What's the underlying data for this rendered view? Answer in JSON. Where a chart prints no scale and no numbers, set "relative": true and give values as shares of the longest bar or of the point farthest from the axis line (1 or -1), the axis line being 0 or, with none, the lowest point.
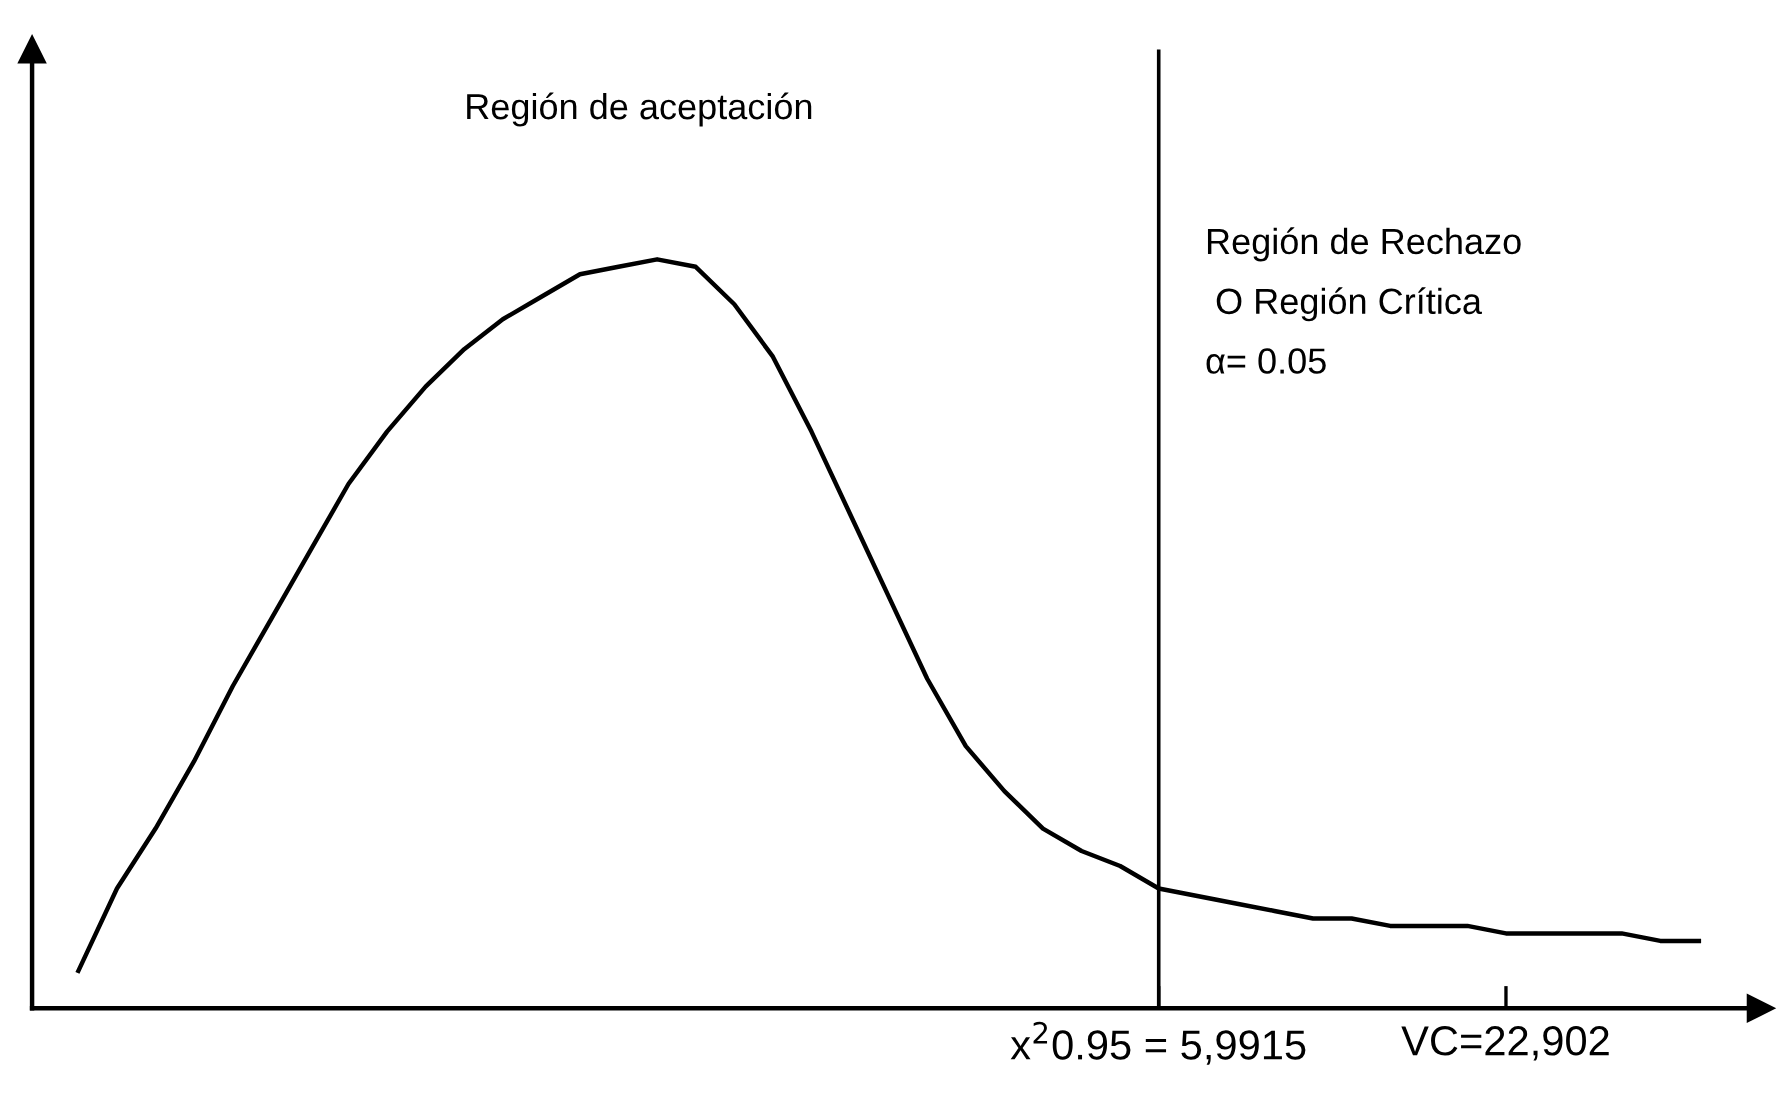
{
  "chart_data": {
    "type": "line",
    "relative": true,
    "color": "#000000",
    "categories": [
      null,
      null,
      null,
      null,
      null,
      null,
      null,
      null,
      null,
      null,
      null,
      null,
      null,
      null,
      null,
      null,
      null,
      null,
      null,
      null,
      null,
      null,
      null,
      null,
      null,
      null,
      null,
      null,
      "x$^{2}$0.95 = 5,9915",
      null,
      null,
      null,
      null,
      null,
      null,
      null,
      null,
      "VC=22,902",
      null,
      null,
      null,
      null,
      null
    ],
    "values": [
      0.05,
      0.16,
      0.24,
      0.33,
      0.43,
      0.52,
      0.61,
      0.7,
      0.77,
      0.83,
      0.88,
      0.92,
      0.95,
      0.98,
      0.99,
      1.0,
      0.99,
      0.94,
      0.87,
      0.77,
      0.66,
      0.55,
      0.44,
      0.35,
      0.29,
      0.24,
      0.21,
      0.19,
      0.16,
      0.15,
      0.14,
      0.13,
      0.12,
      0.12,
      0.11,
      0.11,
      0.11,
      0.1,
      0.1,
      0.1,
      0.1,
      0.09,
      0.09
    ],
    "ref_lines": [
      {
        "axis": "x",
        "value": "x$^{2}$0.95 = 5,9915",
        "color": "#000000"
      }
    ],
    "annotations": [
      "Región de aceptación",
      "Región de Rechazo",
      " O Región Crítica",
      "α= 0.05"
    ],
    "grid": false,
    "legend": false,
    "marker": "none",
    "line_style": "solid"
  }
}
